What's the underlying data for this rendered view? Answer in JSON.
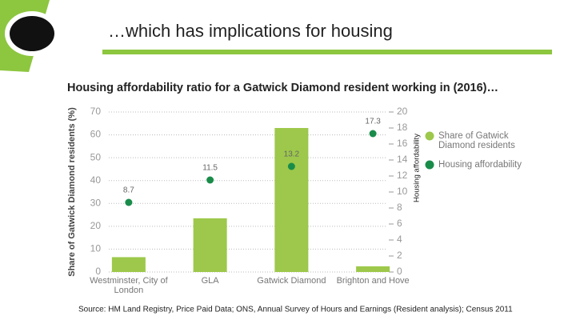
{
  "heading": "…which has implications for housing",
  "source": "Source:  HM Land Registry, Price Paid Data; ONS, Annual Survey  of Hours and Earnings (Resident analysis); Census 2011",
  "chart_data": {
    "type": "bar",
    "title": "Housing affordability ratio for a Gatwick Diamond resident working in (2016)…",
    "categories": [
      "Westminster, City of London",
      "GLA",
      "Gatwick Diamond",
      "Brighton and Hove"
    ],
    "series": [
      {
        "name": "Share of Gatwick Diamond residents",
        "color": "#9dc84b",
        "type": "bar",
        "values": [
          6.5,
          23.5,
          63,
          2.5
        ]
      },
      {
        "name": "Housing affordability",
        "color": "#1a8c4a",
        "type": "scatter",
        "axis": "y2",
        "values": [
          8.7,
          11.5,
          13.2,
          17.3
        ]
      }
    ],
    "ylabel": "Share of Gatwick Diamond residents (%)",
    "y2label": "Housing affordability",
    "ylim": [
      0,
      70
    ],
    "yticks": [
      0,
      10,
      20,
      30,
      40,
      50,
      60,
      70
    ],
    "y2lim": [
      0,
      20
    ],
    "y2ticks": [
      0,
      2,
      4,
      6,
      8,
      10,
      12,
      14,
      16,
      18,
      20
    ],
    "grid": true,
    "legend": "right"
  }
}
